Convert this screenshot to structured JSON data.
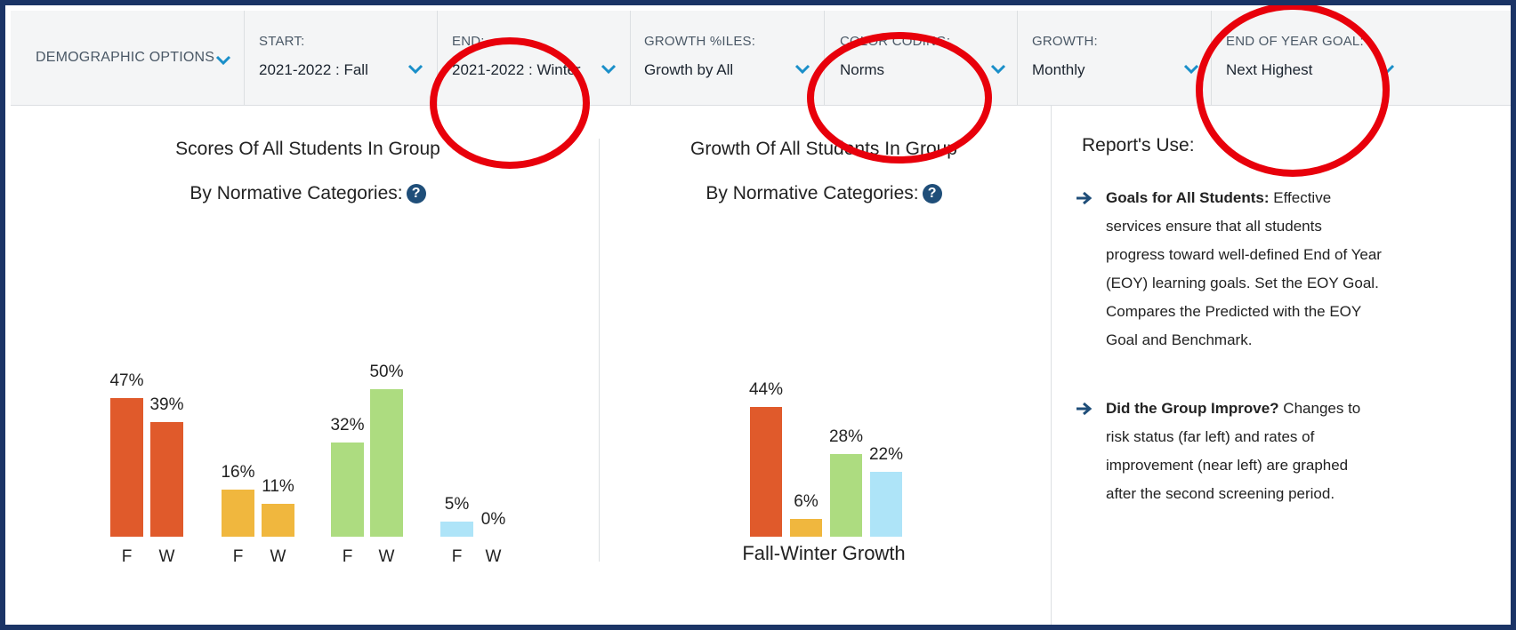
{
  "toolbar": {
    "demographic": "DEMOGRAPHIC OPTIONS",
    "filters": [
      {
        "label": "START:",
        "value": "2021-2022 : Fall"
      },
      {
        "label": "END:",
        "value": "2021-2022 : Winter"
      },
      {
        "label": "GROWTH %ILES:",
        "value": "Growth by All"
      },
      {
        "label": "COLOR CODING:",
        "value": "Norms"
      },
      {
        "label": "GROWTH:",
        "value": "Monthly"
      },
      {
        "label": "END OF YEAR GOAL:",
        "value": "Next Highest"
      }
    ]
  },
  "charts": [
    {
      "type": "bar",
      "title_lines": [
        "Scores Of All Students In Group",
        "By Normative Categories:"
      ],
      "categories": [
        "F",
        "W",
        "F",
        "W",
        "F",
        "W",
        "F",
        "W"
      ],
      "values": [
        47,
        39,
        16,
        11,
        32,
        50,
        5,
        0
      ],
      "value_labels": [
        "47%",
        "39%",
        "16%",
        "11%",
        "32%",
        "50%",
        "5%",
        "0%"
      ],
      "colors": [
        "#e05a2b",
        "#e05a2b",
        "#f0b73e",
        "#f0b73e",
        "#addc80",
        "#addc80",
        "#aee4f8",
        "#aee4f8"
      ]
    },
    {
      "type": "bar",
      "title_lines": [
        "Growth Of All Students In Group",
        "By Normative Categories:"
      ],
      "x_label": "Fall-Winter Growth",
      "values": [
        44,
        6,
        28,
        22
      ],
      "value_labels": [
        "44%",
        "6%",
        "28%",
        "22%"
      ],
      "colors": [
        "#e05a2b",
        "#f0b73e",
        "#addc80",
        "#aee4f8"
      ]
    }
  ],
  "report": {
    "title": "Report's Use:",
    "items": [
      {
        "heading": "Goals for All Students:",
        "body": "Effective services ensure that all students progress toward well-defined End of Year (EOY) learning goals. Set the EOY Goal. Compares the Predicted with the EOY Goal and Benchmark."
      },
      {
        "heading": "Did the Group Improve?",
        "body": "Changes to risk status (far left) and rates of improvement (near left) are graphed after the second screening period."
      }
    ]
  }
}
